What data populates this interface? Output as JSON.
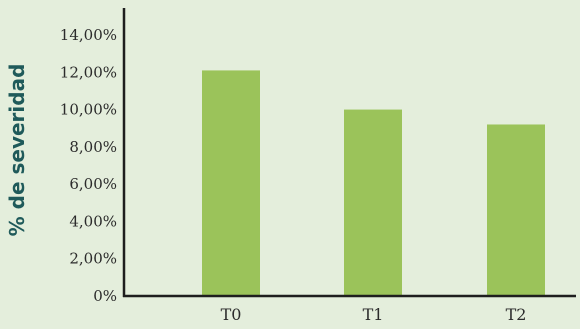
{
  "chart_data": {
    "type": "bar",
    "categories": [
      "T0",
      "T1",
      "T2"
    ],
    "values": [
      12.1,
      10.0,
      9.2
    ],
    "ylabel": "% de severidad",
    "xlabel": "",
    "title": "",
    "ylim": [
      0,
      14
    ],
    "yticks": [
      0,
      2,
      4,
      6,
      8,
      10,
      12,
      14
    ],
    "ytick_labels": [
      "0%",
      "2,00%",
      "4,00%",
      "6,00%",
      "8,00%",
      "10,00%",
      "12,00%",
      "14,00%"
    ],
    "grid": false,
    "legend": "none",
    "bar_color": "#9bc35a",
    "axis_color": "#1e1e1e",
    "title_color": "#1f5a5a",
    "background": "#e4eedc"
  }
}
